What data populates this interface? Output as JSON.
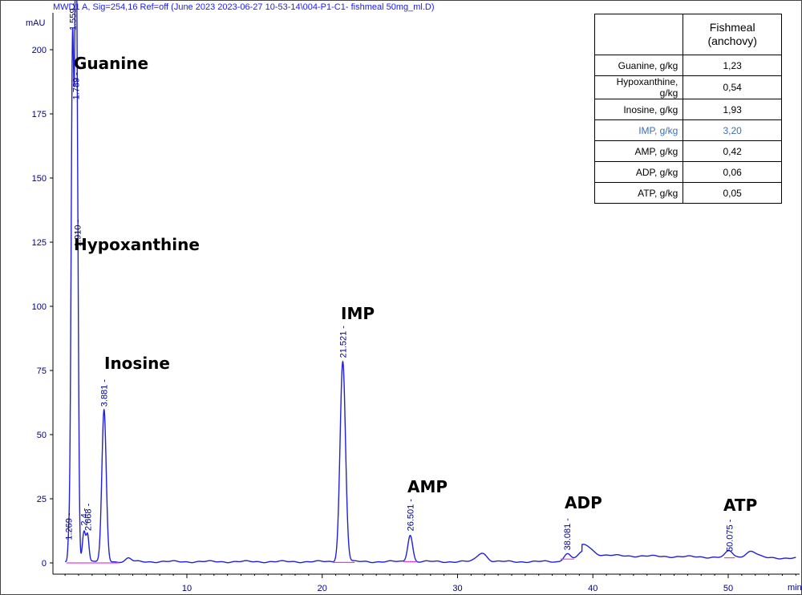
{
  "header": "MWD1 A, Sig=254,16 Ref=off (June 2023 2023-06-27 10-53-14\\004-P1-C1- fishmeal 50mg_ml.D)",
  "y_unit": "mAU",
  "x_unit": "min",
  "table": {
    "column_header": "Fishmeal (anchovy)",
    "rows": [
      {
        "name": "Guanine, g/kg",
        "value": "1,23"
      },
      {
        "name": "Hypoxanthine, g/kg",
        "value": "0,54"
      },
      {
        "name": "Inosine, g/kg",
        "value": "1,93"
      },
      {
        "name": "IMP, g/kg",
        "value": "3,20",
        "highlight": true
      },
      {
        "name": "AMP, g/kg",
        "value": "0,42"
      },
      {
        "name": "ADP, g/kg",
        "value": "0,06"
      },
      {
        "name": "ATP, g/kg",
        "value": "0,05"
      }
    ]
  },
  "colors": {
    "trace": "#2020d8",
    "baseline": "#e040e0",
    "axis_text": "#000080",
    "header": "#1a1aff",
    "highlight": "#3a6fb7"
  },
  "chart_data": {
    "type": "line",
    "xlim": [
      0,
      55
    ],
    "ylim": [
      -5,
      212
    ],
    "x_ticks": [
      10,
      20,
      30,
      40,
      50
    ],
    "y_ticks": [
      0,
      25,
      50,
      75,
      100,
      125,
      150,
      175,
      200
    ],
    "grid": false,
    "baseline_level": 0.5,
    "peaks": [
      {
        "rt": 1.269,
        "height": 7,
        "width": 0.07,
        "label": "1.269"
      },
      {
        "rt": 1.559,
        "height": 205,
        "width": 0.11,
        "label": "1.559"
      },
      {
        "rt": 1.789,
        "height": 178,
        "width": 0.08,
        "label": "1.789"
      },
      {
        "rt": 1.91,
        "height": 120,
        "width": 0.09,
        "label": "1.910"
      },
      {
        "rt": 2.4,
        "height": 12,
        "width": 0.12,
        "label": "2.4"
      },
      {
        "rt": 2.668,
        "height": 10,
        "width": 0.1,
        "label": "2.668"
      },
      {
        "rt": 3.881,
        "height": 59,
        "width": 0.16,
        "label": "3.881"
      },
      {
        "rt": 5.7,
        "height": 1.3,
        "width": 0.2,
        "label": ""
      },
      {
        "rt": 21.521,
        "height": 78,
        "width": 0.2,
        "label": "21.521"
      },
      {
        "rt": 26.501,
        "height": 10.5,
        "width": 0.18,
        "label": "26.501"
      },
      {
        "rt": 31.8,
        "height": 3.5,
        "width": 0.35,
        "label": ""
      },
      {
        "rt": 38.081,
        "height": 3,
        "width": 0.25,
        "label": "38.081"
      },
      {
        "rt": 39.4,
        "height": 4,
        "width": 0.5,
        "label": ""
      },
      {
        "rt": 50.075,
        "height": 2.5,
        "width": 0.25,
        "label": "50.075"
      },
      {
        "rt": 51.7,
        "height": 2.5,
        "width": 0.4,
        "label": ""
      }
    ],
    "compounds": [
      {
        "name": "Guanine",
        "rt": 1.559
      },
      {
        "name": "Hypoxanthine",
        "rt": 1.789
      },
      {
        "name": "Inosine",
        "rt": 3.881
      },
      {
        "name": "IMP",
        "rt": 21.521
      },
      {
        "name": "AMP",
        "rt": 26.501
      },
      {
        "name": "ADP",
        "rt": 38.081
      },
      {
        "name": "ATP",
        "rt": 50.075
      }
    ]
  }
}
